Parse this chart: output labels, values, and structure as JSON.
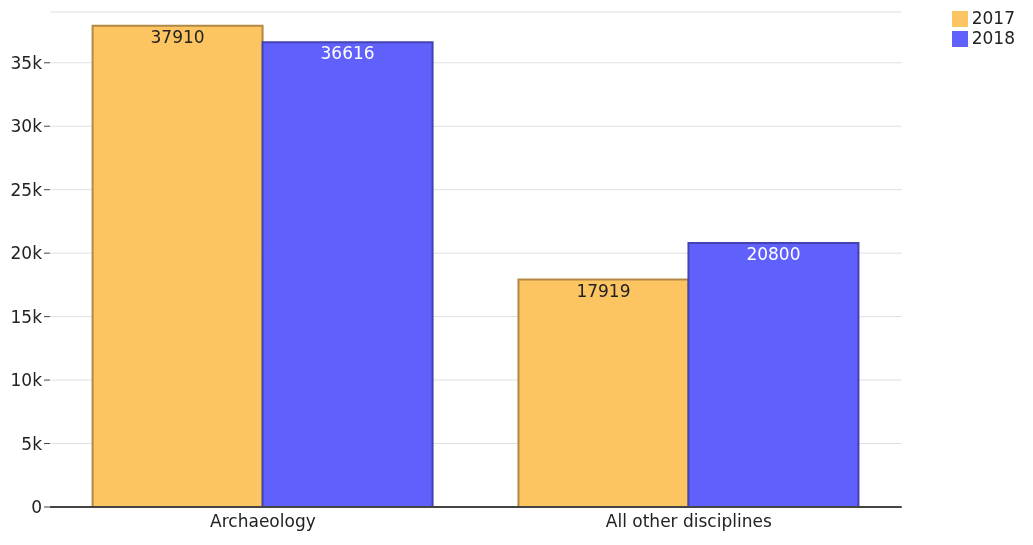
{
  "chart_data": {
    "type": "bar",
    "categories": [
      "Archaeology",
      "All other disciplines"
    ],
    "series": [
      {
        "name": "2017",
        "color": "#fdc462",
        "values": [
          37910,
          17919
        ]
      },
      {
        "name": "2018",
        "color": "#6060fd",
        "values": [
          36616,
          20800
        ]
      }
    ],
    "ylim": [
      0,
      39000
    ],
    "yticks": [
      0,
      {
        "value": 5000,
        "label": "5k"
      },
      {
        "value": 10000,
        "label": "10k"
      },
      {
        "value": 15000,
        "label": "15k"
      },
      {
        "value": 20000,
        "label": "20k"
      },
      {
        "value": 25000,
        "label": "25k"
      },
      {
        "value": 30000,
        "label": "30k"
      },
      {
        "value": 35000,
        "label": "35k"
      }
    ],
    "grid": "y",
    "legend": "top right",
    "data_labels": true
  }
}
